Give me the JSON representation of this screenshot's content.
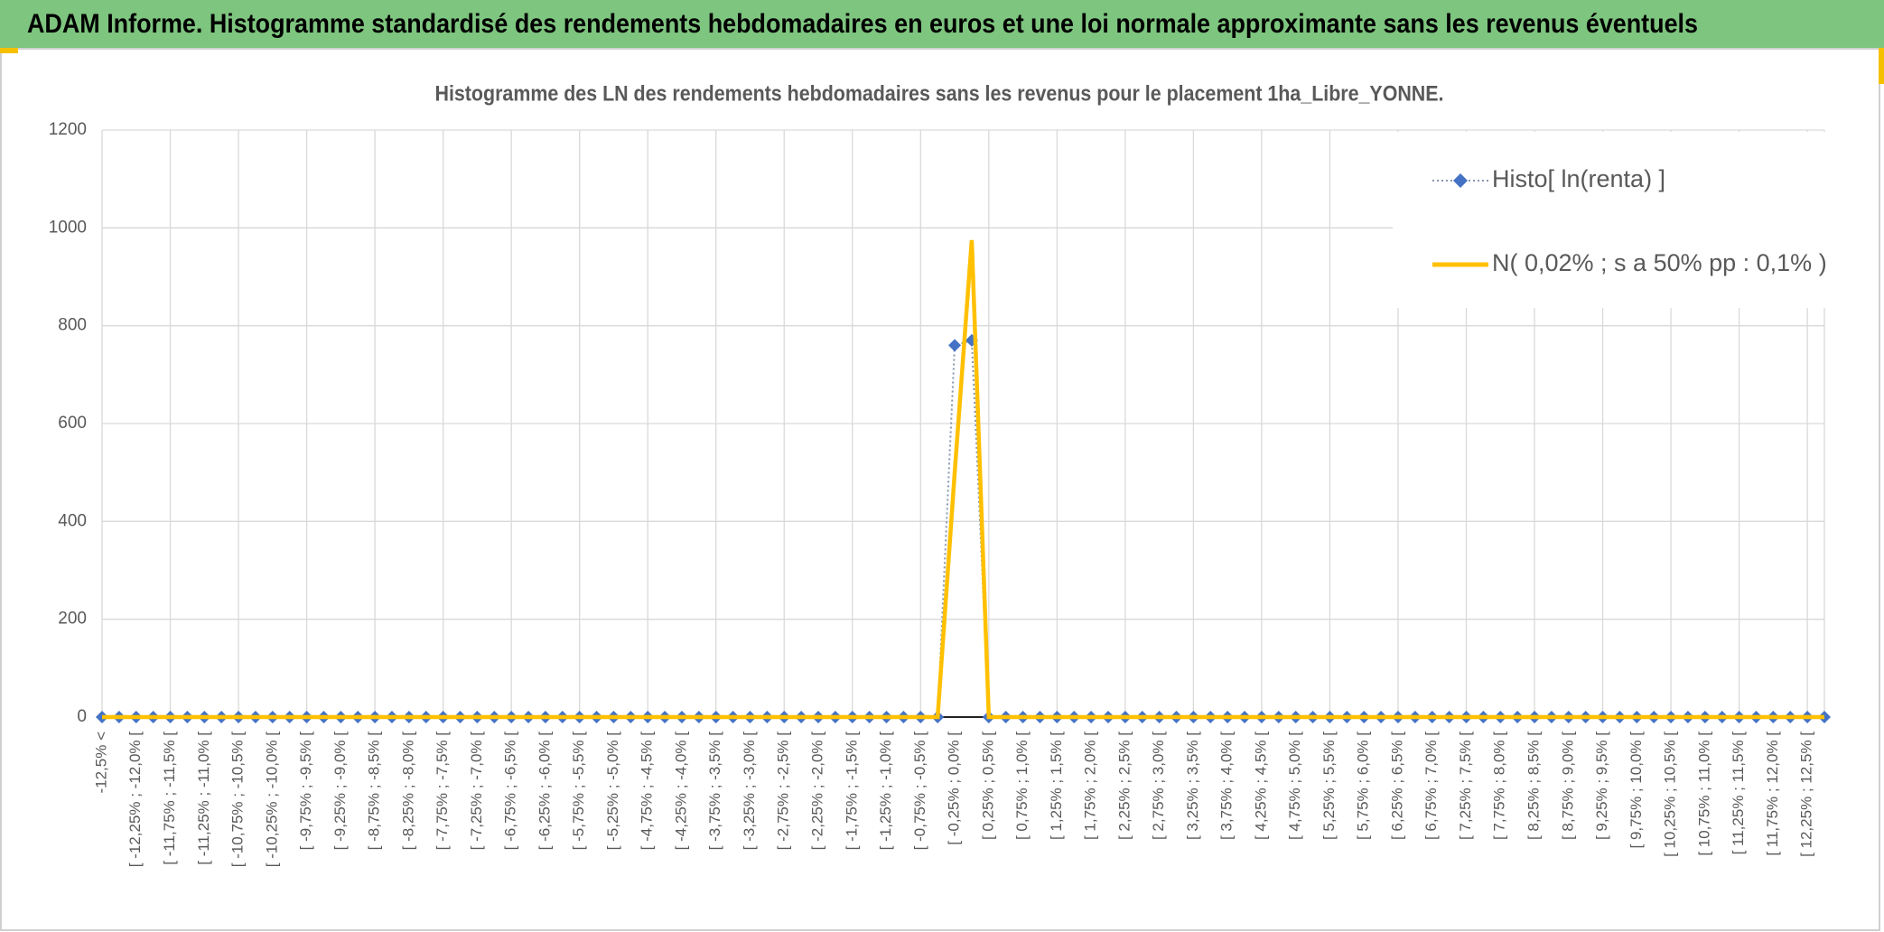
{
  "header": {
    "title": "ADAM Informe. Histogramme standardisé des rendements hebdomadaires en euros et une loi normale approximante sans les revenus éventuels"
  },
  "chart_data": {
    "type": "line",
    "title": "Histogramme des LN des rendements hebdomadaires sans les revenus pour le placement 1ha_Libre_YONNE.",
    "categories": [
      "-12,5% <",
      null,
      "[ -12,25% ; -12,0% [",
      null,
      "[ -11,75% ; -11,5% [",
      null,
      "[ -11,25% ; -11,0% [",
      null,
      "[ -10,75% ; -10,5% [",
      null,
      "[ -10,25% ; -10,0% [",
      null,
      "[ -9,75% ; -9,5% [",
      null,
      "[ -9,25% ; -9,0% [",
      null,
      "[ -8,75% ; -8,5% [",
      null,
      "[ -8,25% ; -8,0% [",
      null,
      "[ -7,75% ; -7,5% [",
      null,
      "[ -7,25% ; -7,0% [",
      null,
      "[ -6,75% ; -6,5% [",
      null,
      "[ -6,25% ; -6,0% [",
      null,
      "[ -5,75% ; -5,5% [",
      null,
      "[ -5,25% ; -5,0% [",
      null,
      "[ -4,75% ; -4,5% [",
      null,
      "[ -4,25% ; -4,0% [",
      null,
      "[ -3,75% ; -3,5% [",
      null,
      "[ -3,25% ; -3,0% [",
      null,
      "[ -2,75% ; -2,5% [",
      null,
      "[ -2,25% ; -2,0% [",
      null,
      "[ -1,75% ; -1,5% [",
      null,
      "[ -1,25% ; -1,0% [",
      null,
      "[ -0,75% ; -0,5% [",
      null,
      "[ -0,25% ; 0,0% [",
      null,
      "[ 0,25% ; 0,5% [",
      null,
      "[ 0,75% ; 1,0% [",
      null,
      "[ 1,25% ; 1,5% [",
      null,
      "[ 1,75% ; 2,0% [",
      null,
      "[ 2,25% ; 2,5% [",
      null,
      "[ 2,75% ; 3,0% [",
      null,
      "[ 3,25% ; 3,5% [",
      null,
      "[ 3,75% ; 4,0% [",
      null,
      "[ 4,25% ; 4,5% [",
      null,
      "[ 4,75% ; 5,0% [",
      null,
      "[ 5,25% ; 5,5% [",
      null,
      "[ 5,75% ; 6,0% [",
      null,
      "[ 6,25% ; 6,5% [",
      null,
      "[ 6,75% ; 7,0% [",
      null,
      "[ 7,25% ; 7,5% [",
      null,
      "[ 7,75% ; 8,0% [",
      null,
      "[ 8,25% ; 8,5% [",
      null,
      "[ 8,75% ; 9,0% [",
      null,
      "[ 9,25% ; 9,5% [",
      null,
      "[ 9,75% ; 10,0% [",
      null,
      "[ 10,25% ; 10,5% [",
      null,
      "[ 10,75% ; 11,0% [",
      null,
      "[ 11,25% ; 11,5% [",
      null,
      "[ 11,75% ; 12,0% [",
      null,
      "[ 12,25% ; 12,5% [",
      null
    ],
    "series": [
      {
        "name": "Histo[ ln(renta) ]",
        "color": "#4472c4",
        "line_color": "#8497b0",
        "values": [
          0,
          0,
          0,
          0,
          0,
          0,
          0,
          0,
          0,
          0,
          0,
          0,
          0,
          0,
          0,
          0,
          0,
          0,
          0,
          0,
          0,
          0,
          0,
          0,
          0,
          0,
          0,
          0,
          0,
          0,
          0,
          0,
          0,
          0,
          0,
          0,
          0,
          0,
          0,
          0,
          0,
          0,
          0,
          0,
          0,
          0,
          0,
          0,
          0,
          0,
          760,
          770,
          0,
          0,
          0,
          0,
          0,
          0,
          0,
          0,
          0,
          0,
          0,
          0,
          0,
          0,
          0,
          0,
          0,
          0,
          0,
          0,
          0,
          0,
          0,
          0,
          0,
          0,
          0,
          0,
          0,
          0,
          0,
          0,
          0,
          0,
          0,
          0,
          0,
          0,
          0,
          0,
          0,
          0,
          0,
          0,
          0,
          0,
          0,
          0,
          0,
          0
        ]
      },
      {
        "name": "N( 0,02% ; s a 50% pp : 0,1% )",
        "color": "#ffc000",
        "values": [
          0,
          0,
          0,
          0,
          0,
          0,
          0,
          0,
          0,
          0,
          0,
          0,
          0,
          0,
          0,
          0,
          0,
          0,
          0,
          0,
          0,
          0,
          0,
          0,
          0,
          0,
          0,
          0,
          0,
          0,
          0,
          0,
          0,
          0,
          0,
          0,
          0,
          0,
          0,
          0,
          0,
          0,
          0,
          0,
          0,
          0,
          0,
          0,
          0,
          0,
          500,
          975,
          0,
          0,
          0,
          0,
          0,
          0,
          0,
          0,
          0,
          0,
          0,
          0,
          0,
          0,
          0,
          0,
          0,
          0,
          0,
          0,
          0,
          0,
          0,
          0,
          0,
          0,
          0,
          0,
          0,
          0,
          0,
          0,
          0,
          0,
          0,
          0,
          0,
          0,
          0,
          0,
          0,
          0,
          0,
          0,
          0,
          0,
          0,
          0,
          0,
          0
        ]
      }
    ],
    "ylim": [
      0,
      1200
    ],
    "yticks": [
      0,
      200,
      400,
      600,
      800,
      1000,
      1200
    ],
    "grid": true,
    "legend": "top-right"
  }
}
